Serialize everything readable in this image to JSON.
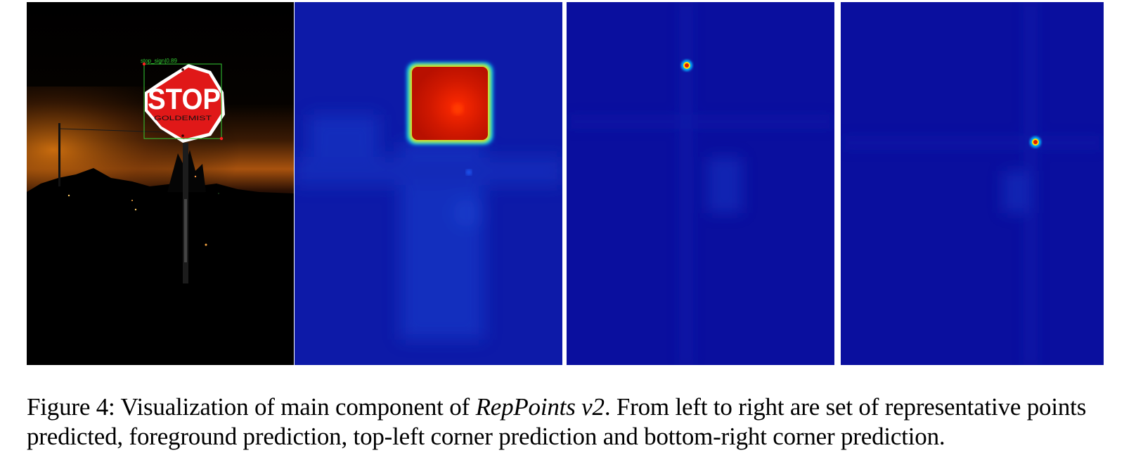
{
  "figure": {
    "caption_prefix": "Figure 4: Visualization of main component of ",
    "caption_italic": "RepPoints v2",
    "caption_rest": ". From left to right are set of representative points predicted, foreground prediction, top-left corner prediction and bottom-right corner prediction.",
    "detection_label": "stop_sign|0.89",
    "sign_text": "STOP",
    "sign_graffiti": "GOLDEMIST",
    "colors": {
      "heatmap_bg": "#0d1aa8",
      "heatmap_hot": "#c81400",
      "box_green": "#33cc33",
      "point_red": "#ff2020",
      "sign_red": "#e01818"
    }
  }
}
